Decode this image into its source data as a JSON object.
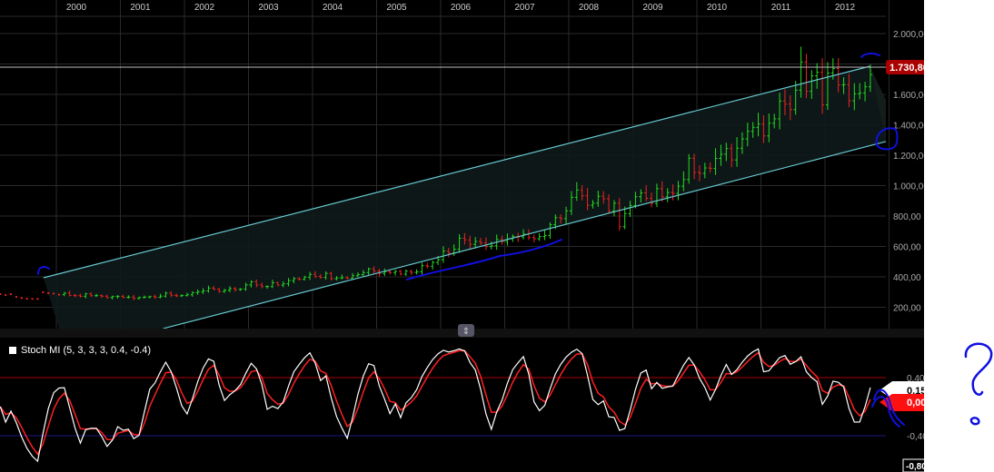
{
  "chart_data": [
    {
      "type": "candlestick",
      "title": "",
      "x_tick_labels": [
        "2000",
        "2001",
        "2002",
        "2003",
        "2004",
        "2005",
        "2006",
        "2007",
        "2008",
        "2009",
        "2010",
        "2011",
        "2012"
      ],
      "y_tick_labels": [
        "2.000,00",
        "1.600,00",
        "1.400,00",
        "1.200,00",
        "1.000,00",
        "800,00",
        "600,00",
        "400,00",
        "200,00"
      ],
      "y_ticks": [
        2000,
        1600,
        1400,
        1200,
        1000,
        800,
        600,
        400,
        200
      ],
      "ylim": [
        60,
        2140
      ],
      "xlim": [
        1999.12,
        2013.55
      ],
      "grid": true,
      "start_month": "1999-02",
      "monthly_close": [
        287,
        280,
        286,
        268,
        261,
        256,
        255,
        255,
        299,
        293,
        290,
        283,
        293,
        278,
        276,
        272,
        288,
        276,
        277,
        273,
        264,
        270,
        272,
        265,
        267,
        258,
        264,
        267,
        270,
        266,
        273,
        293,
        279,
        275,
        277,
        282,
        296,
        301,
        308,
        326,
        318,
        304,
        312,
        323,
        317,
        319,
        347,
        368,
        347,
        336,
        336,
        361,
        346,
        354,
        375,
        388,
        384,
        398,
        416,
        402,
        396,
        423,
        388,
        393,
        395,
        391,
        407,
        415,
        428,
        452,
        438,
        422,
        434,
        428,
        436,
        418,
        437,
        429,
        433,
        473,
        470,
        495,
        513,
        569,
        556,
        582,
        654,
        643,
        614,
        633,
        623,
        599,
        604,
        646,
        632,
        650,
        665,
        662,
        681,
        659,
        650,
        665,
        672,
        743,
        789,
        783,
        834,
        923,
        971,
        933,
        871,
        885,
        930,
        913,
        833,
        884,
        730,
        816,
        869,
        927,
        952,
        916,
        883,
        980,
        927,
        955,
        949,
        996,
        1040,
        1180,
        1087,
        1081,
        1116,
        1113,
        1179,
        1207,
        1244,
        1169,
        1246,
        1307,
        1357,
        1383,
        1405,
        1327,
        1411,
        1439,
        1556,
        1536,
        1500,
        1628,
        1813,
        1620,
        1722,
        1746,
        1531,
        1740,
        1770,
        1662,
        1664,
        1558,
        1604,
        1610,
        1650,
        1730
      ],
      "last_price_label": "1.730,80",
      "last_price": 1730.8,
      "channel": {
        "upper": [
          [
            1999.8,
            394
          ],
          [
            2012.7,
            1785
          ]
        ],
        "lower": [
          [
            2001.67,
            60
          ],
          [
            2012.95,
            1290
          ]
        ]
      },
      "colors": {
        "up": "#22dd22",
        "down": "#ee2222",
        "channel": "#66c8d0",
        "price_tag": "#aa0000"
      }
    },
    {
      "type": "line",
      "indicator_label": "Stoch MI (5, 3, 3, 3, 0.4, -0.4)",
      "y_tick_labels": [
        "0,40",
        "-0,40"
      ],
      "y_ticks": [
        0.4,
        -0.4
      ],
      "ylim": [
        -0.9,
        0.9
      ],
      "bottom_label": "-0,80",
      "current_values": {
        "smi": "0,15",
        "signal": "0,00"
      },
      "levels": {
        "upper": 0.4,
        "lower": -0.4
      },
      "colors": {
        "smi": "#ffffff",
        "signal": "#ff2020",
        "upper_level": "#aa0000",
        "lower_level": "#1a1a80"
      }
    }
  ]
}
